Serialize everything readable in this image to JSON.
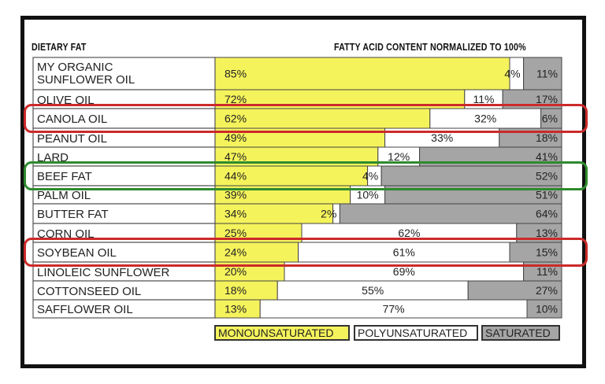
{
  "header": {
    "left": "DIETARY FAT",
    "right": "FATTY ACID CONTENT NORMALIZED TO 100%"
  },
  "chart_data": {
    "type": "bar",
    "stacked": true,
    "orientation": "horizontal",
    "categories": [
      "MY ORGANIC SUNFLOWER OIL",
      "OLIVE OIL",
      "CANOLA OIL",
      "PEANUT OIL",
      "LARD",
      "BEEF FAT",
      "PALM OIL",
      "BUTTER FAT",
      "CORN OIL",
      "SOYBEAN OIL",
      "LINOLEIC SUNFLOWER",
      "COTTONSEED OIL",
      "SAFFLOWER OIL"
    ],
    "series": [
      {
        "name": "MONOUNSATURATED",
        "color": "#f5f35c",
        "values": [
          85,
          72,
          62,
          49,
          47,
          44,
          39,
          34,
          25,
          24,
          20,
          18,
          13
        ]
      },
      {
        "name": "POLYUNSATURATED",
        "color": "#ffffff",
        "values": [
          4,
          11,
          32,
          33,
          12,
          4,
          10,
          2,
          62,
          61,
          69,
          55,
          77
        ]
      },
      {
        "name": "SATURATED",
        "color": "#a5a5a5",
        "values": [
          11,
          17,
          6,
          18,
          41,
          52,
          51,
          64,
          13,
          15,
          11,
          27,
          10
        ]
      }
    ],
    "highlighted": [
      {
        "category": "CANOLA OIL",
        "color": "#cc2a2a"
      },
      {
        "category": "BEEF FAT",
        "color": "#2e8b2e"
      },
      {
        "category": "SOYBEAN OIL",
        "color": "#cc2a2a"
      }
    ],
    "xlim": [
      0,
      100
    ],
    "legend": "bottom-right"
  },
  "labels": {
    "row0_line1": "MY ORGANIC",
    "row0_line2": "SUNFLOWER OIL"
  }
}
